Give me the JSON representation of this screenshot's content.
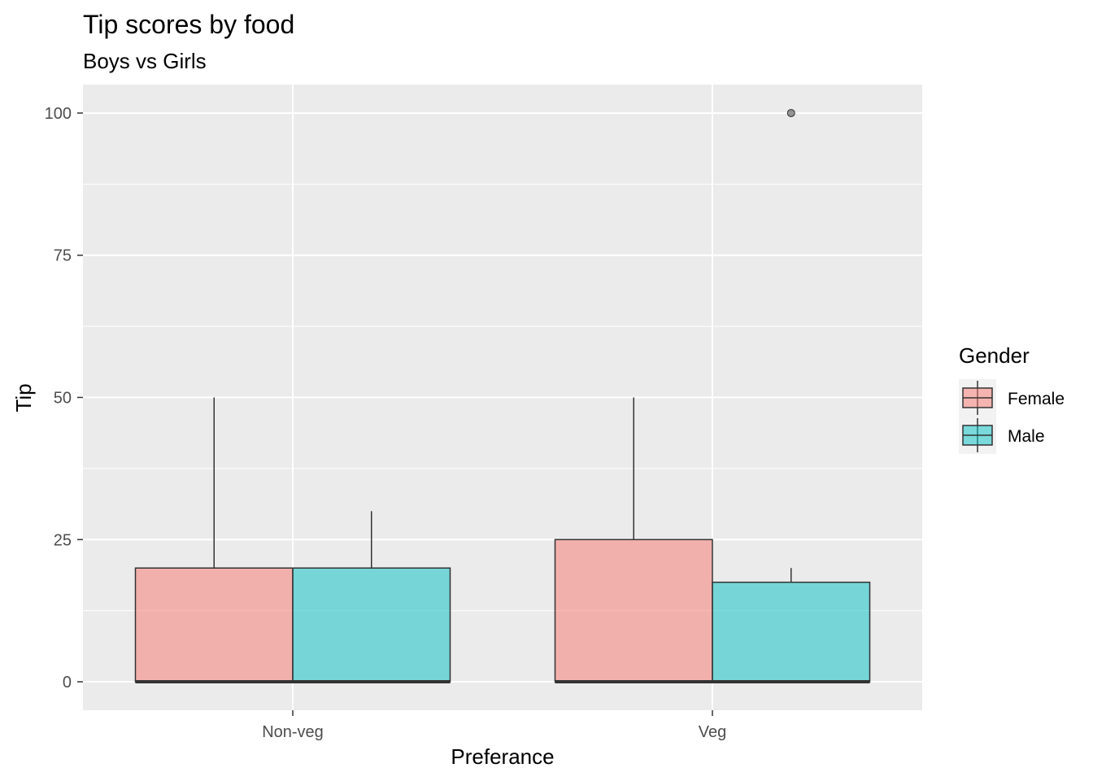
{
  "chart_data": {
    "type": "boxplot",
    "title": "Tip scores by food",
    "subtitle": "Boys vs Girls",
    "xlabel": "Preferance",
    "ylabel": "Tip",
    "categories": [
      "Non-veg",
      "Veg"
    ],
    "yticks": [
      0,
      25,
      50,
      75,
      100
    ],
    "ytick_labels": [
      "0",
      "25",
      "50",
      "75",
      "100"
    ],
    "ylim": [
      -5,
      105
    ],
    "grid": true,
    "legend": {
      "title": "Gender",
      "position": "right",
      "entries": [
        "Female",
        "Male"
      ]
    },
    "series": [
      {
        "name": "Female",
        "color": "#F8766D",
        "boxes": [
          {
            "category": "Non-veg",
            "min": 0,
            "q1": 0,
            "median": 0,
            "q3": 20,
            "max": 50,
            "outliers": []
          },
          {
            "category": "Veg",
            "min": 0,
            "q1": 0,
            "median": 0,
            "q3": 25,
            "max": 50,
            "outliers": []
          }
        ]
      },
      {
        "name": "Male",
        "color": "#00BFC4",
        "boxes": [
          {
            "category": "Non-veg",
            "min": 0,
            "q1": 0,
            "median": 0,
            "q3": 20,
            "max": 30,
            "outliers": []
          },
          {
            "category": "Veg",
            "min": 0,
            "q1": 0,
            "median": 0,
            "q3": 17.5,
            "max": 20,
            "outliers": [
              100
            ]
          }
        ]
      }
    ]
  }
}
